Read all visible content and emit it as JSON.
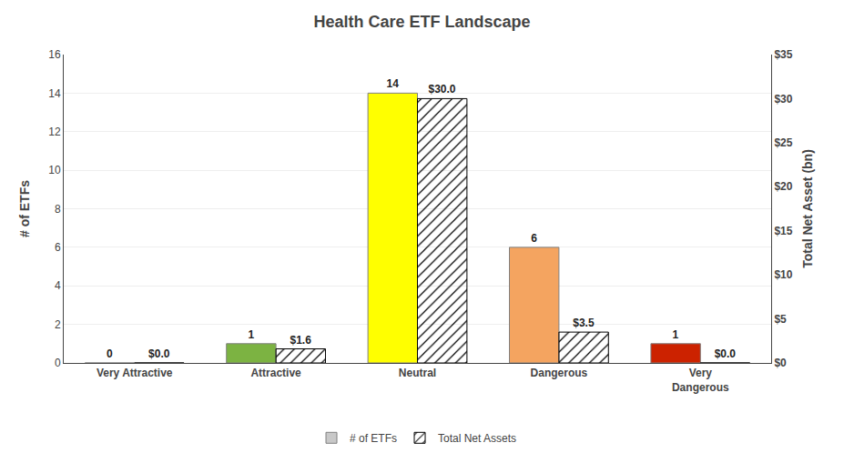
{
  "chart_data": {
    "type": "bar",
    "title": "Health Care ETF Landscape",
    "categories": [
      "Very Attractive",
      "Attractive",
      "Neutral",
      "Dangerous",
      "Very\nDangerous"
    ],
    "series": [
      {
        "name": "# of ETFs",
        "colors": [
          "#c8c8c8",
          "#7cb342",
          "#ffff00",
          "#f4a460",
          "#cc2200"
        ],
        "values": [
          0,
          1,
          14,
          6,
          1
        ]
      },
      {
        "name": "Total Net Assets",
        "color": "#87ceeb",
        "axis": "y2",
        "values": [
          0.0,
          1.6,
          30.0,
          3.5,
          0.0
        ],
        "value_labels": [
          "$0.0",
          "$1.6",
          "$30.0",
          "$3.5",
          "$0.0"
        ]
      }
    ],
    "ylabel": "# of ETFs",
    "y2label": "Total Net Asset (bn)",
    "ylim": [
      0,
      16
    ],
    "yticks": [
      0,
      2,
      4,
      6,
      8,
      10,
      12,
      14,
      16
    ],
    "y2lim": [
      0,
      35
    ],
    "y2ticks": [
      {
        "value": 0,
        "label": "$0"
      },
      {
        "value": 5,
        "label": "$5"
      },
      {
        "value": 10,
        "label": "$10"
      },
      {
        "value": 15,
        "label": "$15"
      },
      {
        "value": 20,
        "label": "$20"
      },
      {
        "value": 25,
        "label": "$25"
      },
      {
        "value": 30,
        "label": "$30"
      },
      {
        "value": 35,
        "label": "$35"
      }
    ],
    "data_labels": true,
    "grid": true,
    "legend": "bottom"
  }
}
